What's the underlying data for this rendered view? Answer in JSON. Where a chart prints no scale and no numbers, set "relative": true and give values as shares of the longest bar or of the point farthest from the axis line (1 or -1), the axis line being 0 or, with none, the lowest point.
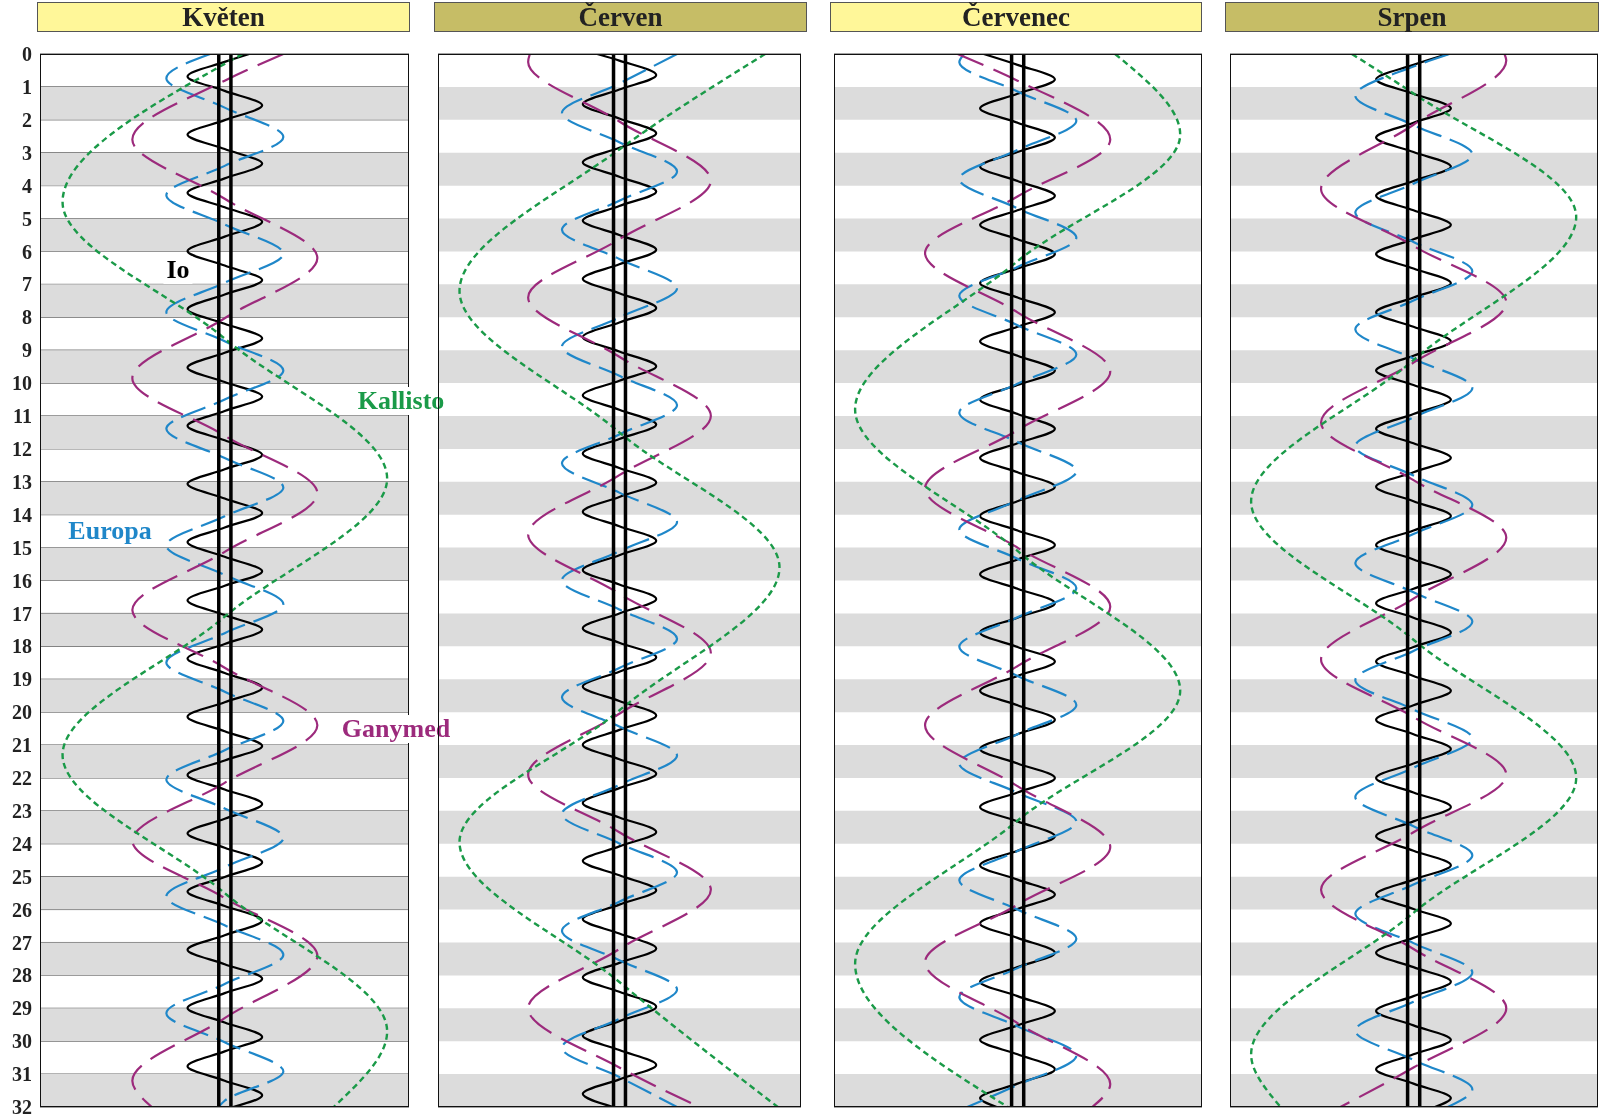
{
  "chart_data": [
    {
      "type": "line",
      "title": "Květen",
      "orientation": "horizontal",
      "relative": true,
      "ylim": [
        32,
        0
      ],
      "yticks": [
        0,
        1,
        2,
        3,
        4,
        5,
        6,
        7,
        8,
        9,
        10,
        11,
        12,
        13,
        14,
        15,
        16,
        17,
        18,
        19,
        20,
        21,
        22,
        23,
        24,
        25,
        26,
        27,
        28,
        29,
        30,
        31,
        32
      ],
      "grid": "y",
      "tick_labels": "y",
      "bands": [
        {
          "axis": "y",
          "from": 1,
          "to": 2,
          "color": "#dcdcdc"
        },
        {
          "axis": "y",
          "from": 3,
          "to": 4,
          "color": "#dcdcdc"
        },
        {
          "axis": "y",
          "from": 5,
          "to": 6,
          "color": "#dcdcdc"
        },
        {
          "axis": "y",
          "from": 7,
          "to": 8,
          "color": "#dcdcdc"
        },
        {
          "axis": "y",
          "from": 9,
          "to": 10,
          "color": "#dcdcdc"
        },
        {
          "axis": "y",
          "from": 11,
          "to": 12,
          "color": "#dcdcdc"
        },
        {
          "axis": "y",
          "from": 13,
          "to": 14,
          "color": "#dcdcdc"
        },
        {
          "axis": "y",
          "from": 15,
          "to": 16,
          "color": "#dcdcdc"
        },
        {
          "axis": "y",
          "from": 17,
          "to": 18,
          "color": "#dcdcdc"
        },
        {
          "axis": "y",
          "from": 19,
          "to": 20,
          "color": "#dcdcdc"
        },
        {
          "axis": "y",
          "from": 21,
          "to": 22,
          "color": "#dcdcdc"
        },
        {
          "axis": "y",
          "from": 23,
          "to": 24,
          "color": "#dcdcdc"
        },
        {
          "axis": "y",
          "from": 25,
          "to": 26,
          "color": "#dcdcdc"
        },
        {
          "axis": "y",
          "from": 27,
          "to": 28,
          "color": "#dcdcdc"
        },
        {
          "axis": "y",
          "from": 29,
          "to": 30,
          "color": "#dcdcdc"
        },
        {
          "axis": "y",
          "from": 31,
          "to": 32,
          "color": "#dcdcdc"
        }
      ],
      "ref_lines": [
        {
          "axis": "x",
          "value": 0.515,
          "color": "#000000"
        },
        {
          "axis": "x",
          "value": 0.55,
          "color": "#000000"
        }
      ],
      "series": [
        {
          "name": "Io",
          "color": "#000000",
          "line_style": "solid",
          "x": [
            0,
            0.24,
            0.68,
            1.12,
            1.56,
            2.01,
            2.45,
            2.89,
            3.33,
            3.78,
            4.22,
            4.66,
            5.1,
            5.55,
            5.99,
            6.43,
            6.87,
            7.31,
            7.76,
            8.2,
            8.64,
            9.08,
            9.53,
            9.97,
            10.41,
            10.85,
            11.3,
            11.74,
            12.18,
            12.62,
            13.06,
            13.51,
            13.95,
            14.39,
            14.83,
            15.28,
            15.72,
            16.16,
            16.6,
            17.05,
            17.49,
            17.93,
            18.37,
            18.81,
            19.26,
            19.7,
            20.14,
            20.58,
            21.03,
            21.47,
            21.91,
            22.35,
            22.79,
            23.24,
            23.68,
            24.12,
            24.56,
            25.01,
            25.45,
            25.89,
            26.33,
            26.78,
            27.22,
            27.66,
            28.1,
            28.54,
            28.99,
            29.43,
            29.87,
            30.31,
            30.76,
            31.2,
            31.64,
            32
          ],
          "values": [
            0.603,
            0.532,
            0.425,
            0.532,
            0.64,
            0.532,
            0.425,
            0.532,
            0.64,
            0.532,
            0.425,
            0.532,
            0.64,
            0.532,
            0.425,
            0.532,
            0.64,
            0.532,
            0.425,
            0.532,
            0.64,
            0.532,
            0.425,
            0.532,
            0.64,
            0.532,
            0.425,
            0.532,
            0.64,
            0.532,
            0.425,
            0.532,
            0.64,
            0.532,
            0.425,
            0.532,
            0.64,
            0.532,
            0.425,
            0.532,
            0.64,
            0.532,
            0.425,
            0.532,
            0.64,
            0.532,
            0.425,
            0.532,
            0.64,
            0.532,
            0.425,
            0.532,
            0.64,
            0.532,
            0.425,
            0.532,
            0.64,
            0.532,
            0.425,
            0.532,
            0.64,
            0.532,
            0.425,
            0.532,
            0.64,
            0.532,
            0.425,
            0.532,
            0.64,
            0.532,
            0.425,
            0.532,
            0.64,
            0.556
          ]
        },
        {
          "name": "Europa",
          "color": "#1f87c9",
          "line_style": "dashed",
          "x": [
            0,
            0.74,
            1.63,
            2.52,
            3.4,
            4.29,
            5.18,
            6.07,
            6.95,
            7.84,
            8.73,
            9.62,
            10.5,
            11.39,
            12.28,
            13.17,
            14.05,
            14.94,
            15.83,
            16.72,
            17.6,
            18.49,
            19.38,
            20.27,
            21.16,
            22.05,
            22.93,
            23.82,
            24.71,
            25.6,
            26.48,
            27.37,
            28.26,
            29.15,
            30.03,
            30.92,
            31.81,
            32
          ],
          "values": [
            0.49,
            0.364,
            0.532,
            0.701,
            0.532,
            0.364,
            0.532,
            0.701,
            0.532,
            0.364,
            0.532,
            0.701,
            0.532,
            0.364,
            0.532,
            0.701,
            0.532,
            0.364,
            0.532,
            0.701,
            0.532,
            0.364,
            0.532,
            0.701,
            0.532,
            0.364,
            0.532,
            0.701,
            0.532,
            0.364,
            0.532,
            0.701,
            0.532,
            0.364,
            0.532,
            0.701,
            0.532,
            0.514
          ]
        },
        {
          "name": "Ganymed",
          "color": "#9c2a7c",
          "line_style": "dashed",
          "x": [
            0,
            0.81,
            2.6,
            4.4,
            6.2,
            8.03,
            9.85,
            11.6,
            13.35,
            15.13,
            16.9,
            18.65,
            20.4,
            22.15,
            23.9,
            25.65,
            27.4,
            29.3,
            31.2,
            32
          ],
          "values": [
            0.701,
            0.532,
            0.266,
            0.532,
            0.799,
            0.532,
            0.266,
            0.532,
            0.799,
            0.532,
            0.266,
            0.532,
            0.799,
            0.532,
            0.266,
            0.532,
            0.799,
            0.532,
            0.266,
            0.322
          ]
        },
        {
          "name": "Kallisto",
          "color": "#1a9a48",
          "line_style": "dashed",
          "x": [
            0,
            0.3,
            4.5,
            8.65,
            12.9,
            17.1,
            21.3,
            25.5,
            29.7,
            32
          ],
          "values": [
            0.584,
            0.532,
            0.065,
            0.532,
            1,
            0.532,
            0.065,
            0.532,
            1,
            0.846
          ]
        }
      ]
    },
    {
      "type": "line",
      "title": "Červen",
      "orientation": "horizontal",
      "relative": true,
      "ylim": [
        32,
        0
      ],
      "yticks": [
        0,
        1,
        2,
        3,
        4,
        5,
        6,
        7,
        8,
        9,
        10,
        11,
        12,
        13,
        14,
        15,
        16,
        17,
        18,
        19,
        20,
        21,
        22,
        23,
        24,
        25,
        26,
        27,
        28,
        29,
        30,
        31,
        32
      ],
      "grid": "y",
      "tick_labels": false,
      "bands": [
        {
          "axis": "y",
          "from": 1,
          "to": 2,
          "color": "#dcdcdc"
        },
        {
          "axis": "y",
          "from": 3,
          "to": 4,
          "color": "#dcdcdc"
        },
        {
          "axis": "y",
          "from": 5,
          "to": 6,
          "color": "#dcdcdc"
        },
        {
          "axis": "y",
          "from": 7,
          "to": 8,
          "color": "#dcdcdc"
        },
        {
          "axis": "y",
          "from": 9,
          "to": 10,
          "color": "#dcdcdc"
        },
        {
          "axis": "y",
          "from": 11,
          "to": 12,
          "color": "#dcdcdc"
        },
        {
          "axis": "y",
          "from": 13,
          "to": 14,
          "color": "#dcdcdc"
        },
        {
          "axis": "y",
          "from": 15,
          "to": 16,
          "color": "#dcdcdc"
        },
        {
          "axis": "y",
          "from": 17,
          "to": 18,
          "color": "#dcdcdc"
        },
        {
          "axis": "y",
          "from": 19,
          "to": 20,
          "color": "#dcdcdc"
        },
        {
          "axis": "y",
          "from": 21,
          "to": 22,
          "color": "#dcdcdc"
        },
        {
          "axis": "y",
          "from": 23,
          "to": 24,
          "color": "#dcdcdc"
        },
        {
          "axis": "y",
          "from": 25,
          "to": 26,
          "color": "#dcdcdc"
        },
        {
          "axis": "y",
          "from": 27,
          "to": 28,
          "color": "#dcdcdc"
        },
        {
          "axis": "y",
          "from": 29,
          "to": 30,
          "color": "#dcdcdc"
        },
        {
          "axis": "y",
          "from": 31,
          "to": 32,
          "color": "#dcdcdc"
        }
      ],
      "ref_lines": [
        {
          "axis": "x",
          "value": 0.514,
          "color": "#000000"
        },
        {
          "axis": "x",
          "value": 0.549,
          "color": "#000000"
        }
      ],
      "series": [
        {
          "color": "#000000",
          "line_style": "solid",
          "x": [
            0,
            0.2,
            0.64,
            1.08,
            1.52,
            1.96,
            2.41,
            2.85,
            3.29,
            3.73,
            4.18,
            4.62,
            5.06,
            5.5,
            5.95,
            6.39,
            6.83,
            7.27,
            7.72,
            8.16,
            8.6,
            9.04,
            9.49,
            9.93,
            10.37,
            10.81,
            11.26,
            11.7,
            12.14,
            12.58,
            13.02,
            13.46,
            13.91,
            14.35,
            14.79,
            15.23,
            15.68,
            16.12,
            16.56,
            17.0,
            17.45,
            17.89,
            18.33,
            18.77,
            19.22,
            19.66,
            20.1,
            20.54,
            20.99,
            21.43,
            21.87,
            22.31,
            22.76,
            23.2,
            23.64,
            24.08,
            24.52,
            24.96,
            25.41,
            25.85,
            26.29,
            26.73,
            27.18,
            27.62,
            28.06,
            28.5,
            28.95,
            29.39,
            29.83,
            30.27,
            30.72,
            31.16,
            31.6,
            32
          ],
          "values": [
            0.466,
            0.531,
            0.639,
            0.531,
            0.424,
            0.531,
            0.639,
            0.531,
            0.424,
            0.531,
            0.639,
            0.531,
            0.424,
            0.531,
            0.639,
            0.531,
            0.424,
            0.531,
            0.639,
            0.531,
            0.424,
            0.531,
            0.639,
            0.531,
            0.424,
            0.531,
            0.639,
            0.531,
            0.424,
            0.531,
            0.639,
            0.531,
            0.424,
            0.531,
            0.639,
            0.531,
            0.424,
            0.531,
            0.639,
            0.531,
            0.424,
            0.531,
            0.639,
            0.531,
            0.424,
            0.531,
            0.639,
            0.531,
            0.424,
            0.531,
            0.639,
            0.531,
            0.424,
            0.531,
            0.639,
            0.531,
            0.424,
            0.531,
            0.639,
            0.531,
            0.424,
            0.531,
            0.639,
            0.531,
            0.424,
            0.531,
            0.639,
            0.531,
            0.424,
            0.531,
            0.639,
            0.531,
            0.424,
            0.513
          ]
        },
        {
          "color": "#1f87c9",
          "line_style": "dashed",
          "x": [
            0,
            0.9,
            1.79,
            2.68,
            3.57,
            4.46,
            5.34,
            6.23,
            7.12,
            8.01,
            8.89,
            9.78,
            10.67,
            11.56,
            12.44,
            13.33,
            14.22,
            15.11,
            15.99,
            16.88,
            17.77,
            18.66,
            19.55,
            20.44,
            21.32,
            22.21,
            23.1,
            23.99,
            24.87,
            25.76,
            26.65,
            27.54,
            28.43,
            29.32,
            30.2,
            31.09,
            32
          ],
          "values": [
            0.7,
            0.531,
            0.363,
            0.531,
            0.7,
            0.531,
            0.363,
            0.531,
            0.7,
            0.531,
            0.363,
            0.531,
            0.7,
            0.531,
            0.363,
            0.531,
            0.7,
            0.531,
            0.363,
            0.531,
            0.7,
            0.531,
            0.363,
            0.531,
            0.7,
            0.531,
            0.363,
            0.531,
            0.7,
            0.531,
            0.363,
            0.531,
            0.7,
            0.531,
            0.363,
            0.531,
            0.7
          ]
        },
        {
          "color": "#9c2a7c",
          "line_style": "dashed",
          "x": [
            0,
            0.24,
            2.05,
            3.85,
            5.63,
            7.4,
            9.2,
            11.0,
            12.8,
            14.6,
            16.4,
            18.2,
            20.05,
            21.9,
            23.65,
            25.4,
            27.2,
            29.0,
            30.8,
            32
          ],
          "values": [
            0.269,
            0.264,
            0.531,
            0.799,
            0.531,
            0.264,
            0.531,
            0.799,
            0.531,
            0.264,
            0.531,
            0.799,
            0.531,
            0.264,
            0.531,
            0.799,
            0.531,
            0.264,
            0.531,
            0.766
          ]
        },
        {
          "color": "#1a9a48",
          "line_style": "dashed",
          "x": [
            0,
            2.9,
            7.2,
            11.5,
            15.6,
            19.95,
            23.95,
            28.2,
            32
          ],
          "values": [
            0.958,
            0.531,
            0.063,
            0.531,
            1,
            0.531,
            0.063,
            0.531,
            0.995
          ]
        }
      ]
    },
    {
      "type": "line",
      "title": "Červenec",
      "orientation": "horizontal",
      "relative": true,
      "ylim": [
        32,
        0
      ],
      "yticks": [
        0,
        1,
        2,
        3,
        4,
        5,
        6,
        7,
        8,
        9,
        10,
        11,
        12,
        13,
        14,
        15,
        16,
        17,
        18,
        19,
        20,
        21,
        22,
        23,
        24,
        25,
        26,
        27,
        28,
        29,
        30,
        31,
        32
      ],
      "grid": "y",
      "tick_labels": false,
      "bands": [
        {
          "axis": "y",
          "from": 1,
          "to": 2,
          "color": "#dcdcdc"
        },
        {
          "axis": "y",
          "from": 3,
          "to": 4,
          "color": "#dcdcdc"
        },
        {
          "axis": "y",
          "from": 5,
          "to": 6,
          "color": "#dcdcdc"
        },
        {
          "axis": "y",
          "from": 7,
          "to": 8,
          "color": "#dcdcdc"
        },
        {
          "axis": "y",
          "from": 9,
          "to": 10,
          "color": "#dcdcdc"
        },
        {
          "axis": "y",
          "from": 11,
          "to": 12,
          "color": "#dcdcdc"
        },
        {
          "axis": "y",
          "from": 13,
          "to": 14,
          "color": "#dcdcdc"
        },
        {
          "axis": "y",
          "from": 15,
          "to": 16,
          "color": "#dcdcdc"
        },
        {
          "axis": "y",
          "from": 17,
          "to": 18,
          "color": "#dcdcdc"
        },
        {
          "axis": "y",
          "from": 19,
          "to": 20,
          "color": "#dcdcdc"
        },
        {
          "axis": "y",
          "from": 21,
          "to": 22,
          "color": "#dcdcdc"
        },
        {
          "axis": "y",
          "from": 23,
          "to": 24,
          "color": "#dcdcdc"
        },
        {
          "axis": "y",
          "from": 25,
          "to": 26,
          "color": "#dcdcdc"
        },
        {
          "axis": "y",
          "from": 27,
          "to": 28,
          "color": "#dcdcdc"
        },
        {
          "axis": "y",
          "from": 29,
          "to": 30,
          "color": "#dcdcdc"
        },
        {
          "axis": "y",
          "from": 31,
          "to": 32,
          "color": "#dcdcdc"
        }
      ],
      "ref_lines": [
        {
          "axis": "x",
          "value": 0.513,
          "color": "#000000"
        },
        {
          "axis": "x",
          "value": 0.548,
          "color": "#000000"
        }
      ],
      "series": [
        {
          "color": "#000000",
          "line_style": "solid",
          "x": [
            0,
            0.33,
            0.77,
            1.21,
            1.65,
            2.09,
            2.54,
            2.98,
            3.42,
            3.86,
            4.31,
            4.75,
            5.19,
            5.63,
            6.08,
            6.52,
            6.96,
            7.4,
            7.85,
            8.29,
            8.73,
            9.17,
            9.62,
            10.06,
            10.5,
            10.94,
            11.39,
            11.83,
            12.27,
            12.71,
            13.15,
            13.59,
            14.04,
            14.48,
            14.92,
            15.36,
            15.81,
            16.25,
            16.69,
            17.13,
            17.58,
            18.02,
            18.46,
            18.9,
            19.35,
            19.79,
            20.23,
            20.67,
            21.12,
            21.56,
            22.0,
            22.44,
            22.88,
            23.32,
            23.77,
            24.21,
            24.65,
            25.09,
            25.54,
            25.98,
            26.42,
            26.86,
            27.31,
            27.75,
            28.19,
            28.63,
            29.08,
            29.52,
            29.96,
            30.4,
            30.85,
            31.29,
            31.73,
            32
          ],
          "values": [
            0.432,
            0.53,
            0.638,
            0.53,
            0.422,
            0.53,
            0.638,
            0.53,
            0.422,
            0.53,
            0.638,
            0.53,
            0.422,
            0.53,
            0.638,
            0.53,
            0.422,
            0.53,
            0.638,
            0.53,
            0.422,
            0.53,
            0.638,
            0.53,
            0.422,
            0.53,
            0.638,
            0.53,
            0.422,
            0.53,
            0.638,
            0.53,
            0.422,
            0.53,
            0.638,
            0.53,
            0.422,
            0.53,
            0.638,
            0.53,
            0.422,
            0.53,
            0.638,
            0.53,
            0.422,
            0.53,
            0.638,
            0.53,
            0.422,
            0.53,
            0.638,
            0.53,
            0.422,
            0.53,
            0.638,
            0.53,
            0.422,
            0.53,
            0.638,
            0.53,
            0.422,
            0.53,
            0.638,
            0.53,
            0.422,
            0.53,
            0.638,
            0.53,
            0.422,
            0.53,
            0.638,
            0.53,
            0.422,
            0.47
          ]
        },
        {
          "color": "#1f87c9",
          "line_style": "dashed",
          "x": [
            0,
            0.25,
            1.14,
            2.03,
            2.92,
            3.8,
            4.69,
            5.58,
            6.47,
            7.35,
            8.24,
            9.13,
            10.02,
            10.9,
            11.79,
            12.68,
            13.57,
            14.45,
            15.34,
            16.23,
            17.12,
            18.01,
            18.9,
            19.78,
            20.67,
            21.56,
            22.45,
            23.33,
            24.22,
            25.11,
            26.0,
            26.89,
            27.78,
            28.66,
            29.55,
            30.44,
            31.33,
            32
          ],
          "values": [
            0.376,
            0.362,
            0.53,
            0.7,
            0.53,
            0.362,
            0.53,
            0.7,
            0.53,
            0.362,
            0.53,
            0.7,
            0.53,
            0.362,
            0.53,
            0.7,
            0.53,
            0.362,
            0.53,
            0.7,
            0.53,
            0.362,
            0.53,
            0.7,
            0.53,
            0.362,
            0.53,
            0.7,
            0.53,
            0.362,
            0.53,
            0.7,
            0.53,
            0.362,
            0.53,
            0.7,
            0.53,
            0.385
          ]
        },
        {
          "color": "#9c2a7c",
          "line_style": "dashed",
          "x": [
            0,
            0.81,
            2.6,
            4.33,
            6.05,
            7.85,
            9.65,
            11.43,
            13.2,
            15.0,
            16.8,
            18.6,
            20.4,
            22.25,
            24.1,
            25.85,
            27.6,
            29.45,
            31.3,
            32
          ],
          "values": [
            0.357,
            0.53,
            0.798,
            0.53,
            0.263,
            0.53,
            0.798,
            0.53,
            0.263,
            0.53,
            0.798,
            0.53,
            0.263,
            0.53,
            0.798,
            0.53,
            0.263,
            0.53,
            0.798,
            0.746
          ]
        },
        {
          "color": "#1a9a48",
          "line_style": "dashed",
          "x": [
            0,
            2.45,
            6.3,
            10.8,
            15.1,
            19.35,
            23.3,
            27.65,
            32
          ],
          "values": [
            0.812,
            1,
            0.53,
            0.061,
            0.53,
            1,
            0.53,
            0.061,
            0.502
          ]
        }
      ]
    },
    {
      "type": "line",
      "title": "Srpen",
      "orientation": "horizontal",
      "relative": true,
      "ylim": [
        32,
        0
      ],
      "yticks": [
        0,
        1,
        2,
        3,
        4,
        5,
        6,
        7,
        8,
        9,
        10,
        11,
        12,
        13,
        14,
        15,
        16,
        17,
        18,
        19,
        20,
        21,
        22,
        23,
        24,
        25,
        26,
        27,
        28,
        29,
        30,
        31,
        32
      ],
      "grid": "y",
      "tick_labels": false,
      "bands": [
        {
          "axis": "y",
          "from": 1,
          "to": 2,
          "color": "#dcdcdc"
        },
        {
          "axis": "y",
          "from": 3,
          "to": 4,
          "color": "#dcdcdc"
        },
        {
          "axis": "y",
          "from": 5,
          "to": 6,
          "color": "#dcdcdc"
        },
        {
          "axis": "y",
          "from": 7,
          "to": 8,
          "color": "#dcdcdc"
        },
        {
          "axis": "y",
          "from": 9,
          "to": 10,
          "color": "#dcdcdc"
        },
        {
          "axis": "y",
          "from": 11,
          "to": 12,
          "color": "#dcdcdc"
        },
        {
          "axis": "y",
          "from": 13,
          "to": 14,
          "color": "#dcdcdc"
        },
        {
          "axis": "y",
          "from": 15,
          "to": 16,
          "color": "#dcdcdc"
        },
        {
          "axis": "y",
          "from": 17,
          "to": 18,
          "color": "#dcdcdc"
        },
        {
          "axis": "y",
          "from": 19,
          "to": 20,
          "color": "#dcdcdc"
        },
        {
          "axis": "y",
          "from": 21,
          "to": 22,
          "color": "#dcdcdc"
        },
        {
          "axis": "y",
          "from": 23,
          "to": 24,
          "color": "#dcdcdc"
        },
        {
          "axis": "y",
          "from": 25,
          "to": 26,
          "color": "#dcdcdc"
        },
        {
          "axis": "y",
          "from": 27,
          "to": 28,
          "color": "#dcdcdc"
        },
        {
          "axis": "y",
          "from": 29,
          "to": 30,
          "color": "#dcdcdc"
        },
        {
          "axis": "y",
          "from": 31,
          "to": 32,
          "color": "#dcdcdc"
        }
      ],
      "ref_lines": [
        {
          "axis": "x",
          "value": 0.513,
          "color": "#000000"
        },
        {
          "axis": "x",
          "value": 0.548,
          "color": "#000000"
        }
      ],
      "series": [
        {
          "color": "#000000",
          "line_style": "solid",
          "x": [
            0,
            0.33,
            0.77,
            1.21,
            1.65,
            2.09,
            2.54,
            2.98,
            3.42,
            3.86,
            4.31,
            4.75,
            5.19,
            5.63,
            6.08,
            6.52,
            6.96,
            7.4,
            7.85,
            8.29,
            8.73,
            9.17,
            9.62,
            10.06,
            10.5,
            10.94,
            11.39,
            11.83,
            12.27,
            12.71,
            13.15,
            13.59,
            14.04,
            14.48,
            14.92,
            15.36,
            15.81,
            16.25,
            16.69,
            17.13,
            17.58,
            18.02,
            18.46,
            18.9,
            19.35,
            19.79,
            20.23,
            20.67,
            21.12,
            21.56,
            22.0,
            22.44,
            22.88,
            23.32,
            23.77,
            24.21,
            24.65,
            25.09,
            25.54,
            25.98,
            26.42,
            26.86,
            27.31,
            27.75,
            28.19,
            28.63,
            29.08,
            29.52,
            29.96,
            30.4,
            30.85,
            31.29,
            31.73,
            32
          ],
          "values": [
            0.629,
            0.53,
            0.422,
            0.53,
            0.638,
            0.53,
            0.422,
            0.53,
            0.638,
            0.53,
            0.422,
            0.53,
            0.638,
            0.53,
            0.422,
            0.53,
            0.638,
            0.53,
            0.422,
            0.53,
            0.638,
            0.53,
            0.422,
            0.53,
            0.638,
            0.53,
            0.422,
            0.53,
            0.638,
            0.53,
            0.422,
            0.53,
            0.638,
            0.53,
            0.422,
            0.53,
            0.638,
            0.53,
            0.422,
            0.53,
            0.638,
            0.53,
            0.422,
            0.53,
            0.638,
            0.53,
            0.422,
            0.53,
            0.638,
            0.53,
            0.422,
            0.53,
            0.638,
            0.53,
            0.422,
            0.53,
            0.638,
            0.53,
            0.422,
            0.53,
            0.638,
            0.53,
            0.422,
            0.53,
            0.638,
            0.53,
            0.422,
            0.53,
            0.638,
            0.53,
            0.422,
            0.53,
            0.638,
            0.592
          ]
        },
        {
          "color": "#1f87c9",
          "line_style": "dashed",
          "x": [
            0,
            0.38,
            1.27,
            2.16,
            3.05,
            3.94,
            4.82,
            5.71,
            6.6,
            7.49,
            8.37,
            9.26,
            10.15,
            11.04,
            11.92,
            12.81,
            13.7,
            14.59,
            15.47,
            16.36,
            17.25,
            18.14,
            19.03,
            19.92,
            20.8,
            21.69,
            22.58,
            23.47,
            24.35,
            25.24,
            26.13,
            27.02,
            27.91,
            28.8,
            29.68,
            30.57,
            31.46,
            32
          ],
          "values": [
            0.634,
            0.53,
            0.362,
            0.53,
            0.7,
            0.53,
            0.362,
            0.53,
            0.7,
            0.53,
            0.362,
            0.53,
            0.7,
            0.53,
            0.362,
            0.53,
            0.7,
            0.53,
            0.362,
            0.53,
            0.7,
            0.53,
            0.362,
            0.53,
            0.7,
            0.53,
            0.362,
            0.53,
            0.7,
            0.53,
            0.362,
            0.53,
            0.7,
            0.53,
            0.362,
            0.53,
            0.7,
            0.629
          ]
        },
        {
          "color": "#9c2a7c",
          "line_style": "dashed",
          "x": [
            0,
            0.2,
            2.15,
            4.1,
            5.83,
            7.55,
            9.38,
            11.2,
            12.95,
            14.7,
            16.55,
            18.4,
            20.15,
            21.9,
            23.65,
            25.4,
            27.2,
            29.0,
            30.8,
            32
          ],
          "values": [
            0.793,
            0.798,
            0.53,
            0.263,
            0.53,
            0.798,
            0.53,
            0.263,
            0.53,
            0.798,
            0.53,
            0.263,
            0.53,
            0.798,
            0.53,
            0.263,
            0.53,
            0.798,
            0.53,
            0.319
          ]
        },
        {
          "color": "#1a9a48",
          "line_style": "dashed",
          "x": [
            0,
            1.2,
            4.95,
            9.3,
            13.6,
            17.8,
            22.0,
            26.1,
            30.4,
            32
          ],
          "values": [
            0.352,
            0.53,
            1,
            0.53,
            0.061,
            0.53,
            1,
            0.53,
            0.061,
            0.146
          ]
        }
      ]
    }
  ]
}
